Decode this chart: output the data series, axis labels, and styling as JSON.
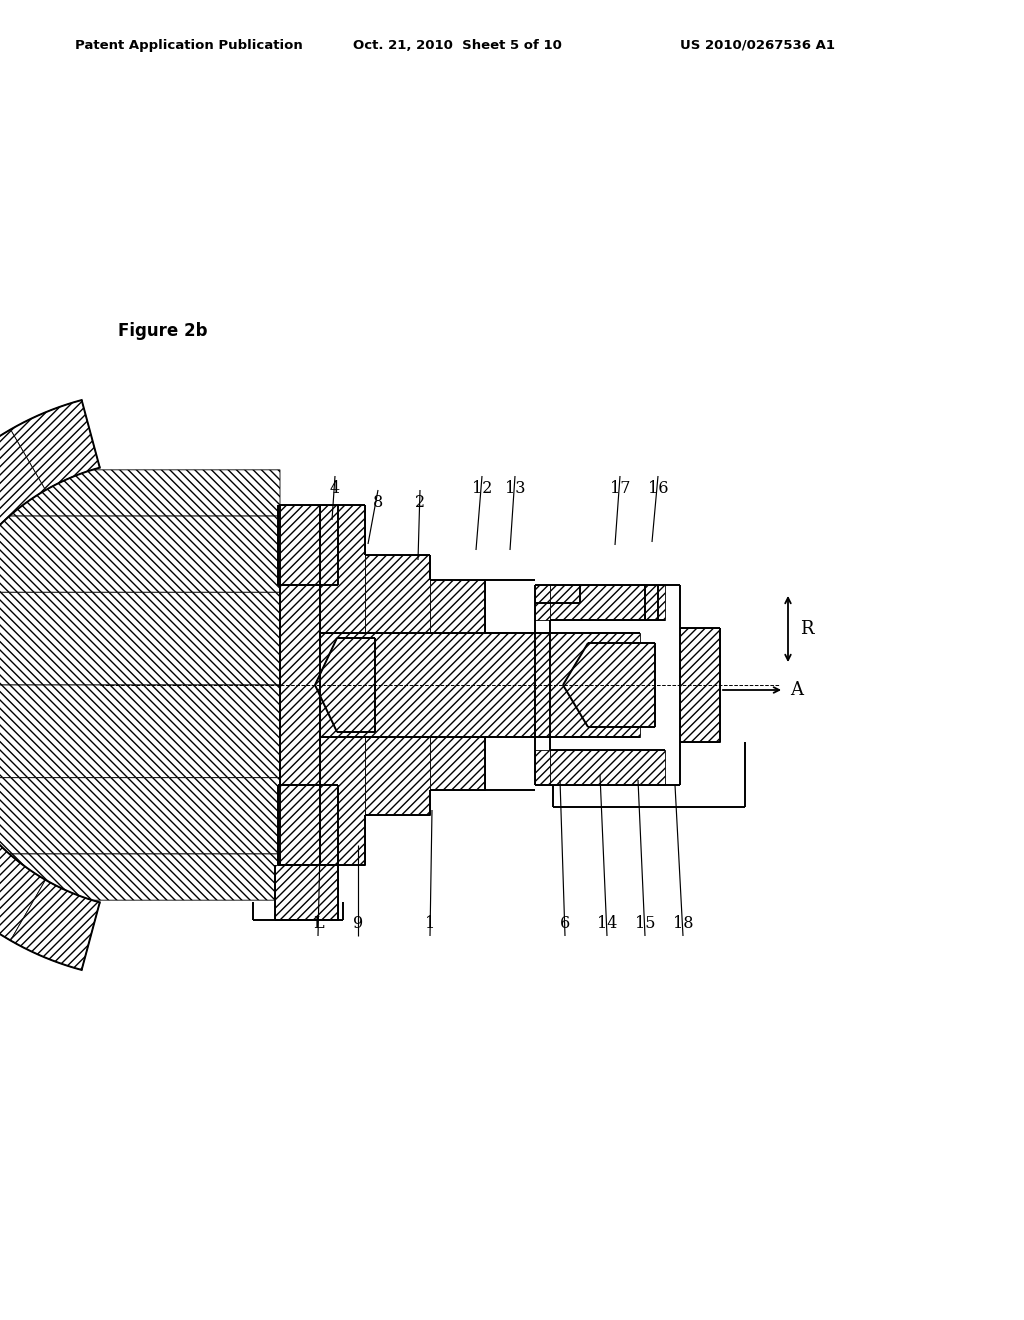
{
  "bg_color": "#ffffff",
  "line_color": "#000000",
  "header_left": "Patent Application Publication",
  "header_center": "Oct. 21, 2010  Sheet 5 of 10",
  "header_right": "US 2010/0267536 A1",
  "figure_label": "Figure 2b",
  "top_labels": [
    [
      "L",
      318,
      388,
      320,
      470
    ],
    [
      "9",
      358,
      388,
      358,
      475
    ],
    [
      "1",
      430,
      388,
      432,
      510
    ],
    [
      "6",
      565,
      388,
      560,
      540
    ],
    [
      "14",
      607,
      388,
      600,
      545
    ],
    [
      "15",
      645,
      388,
      638,
      540
    ],
    [
      "18",
      683,
      388,
      675,
      535
    ]
  ],
  "bot_labels": [
    [
      "2",
      420,
      826,
      418,
      760
    ],
    [
      "8",
      378,
      826,
      368,
      776
    ],
    [
      "4",
      335,
      840,
      332,
      800
    ],
    [
      "12",
      482,
      840,
      476,
      770
    ],
    [
      "13",
      515,
      840,
      510,
      770
    ],
    [
      "17",
      620,
      840,
      615,
      775
    ],
    [
      "16",
      658,
      840,
      652,
      778
    ]
  ]
}
